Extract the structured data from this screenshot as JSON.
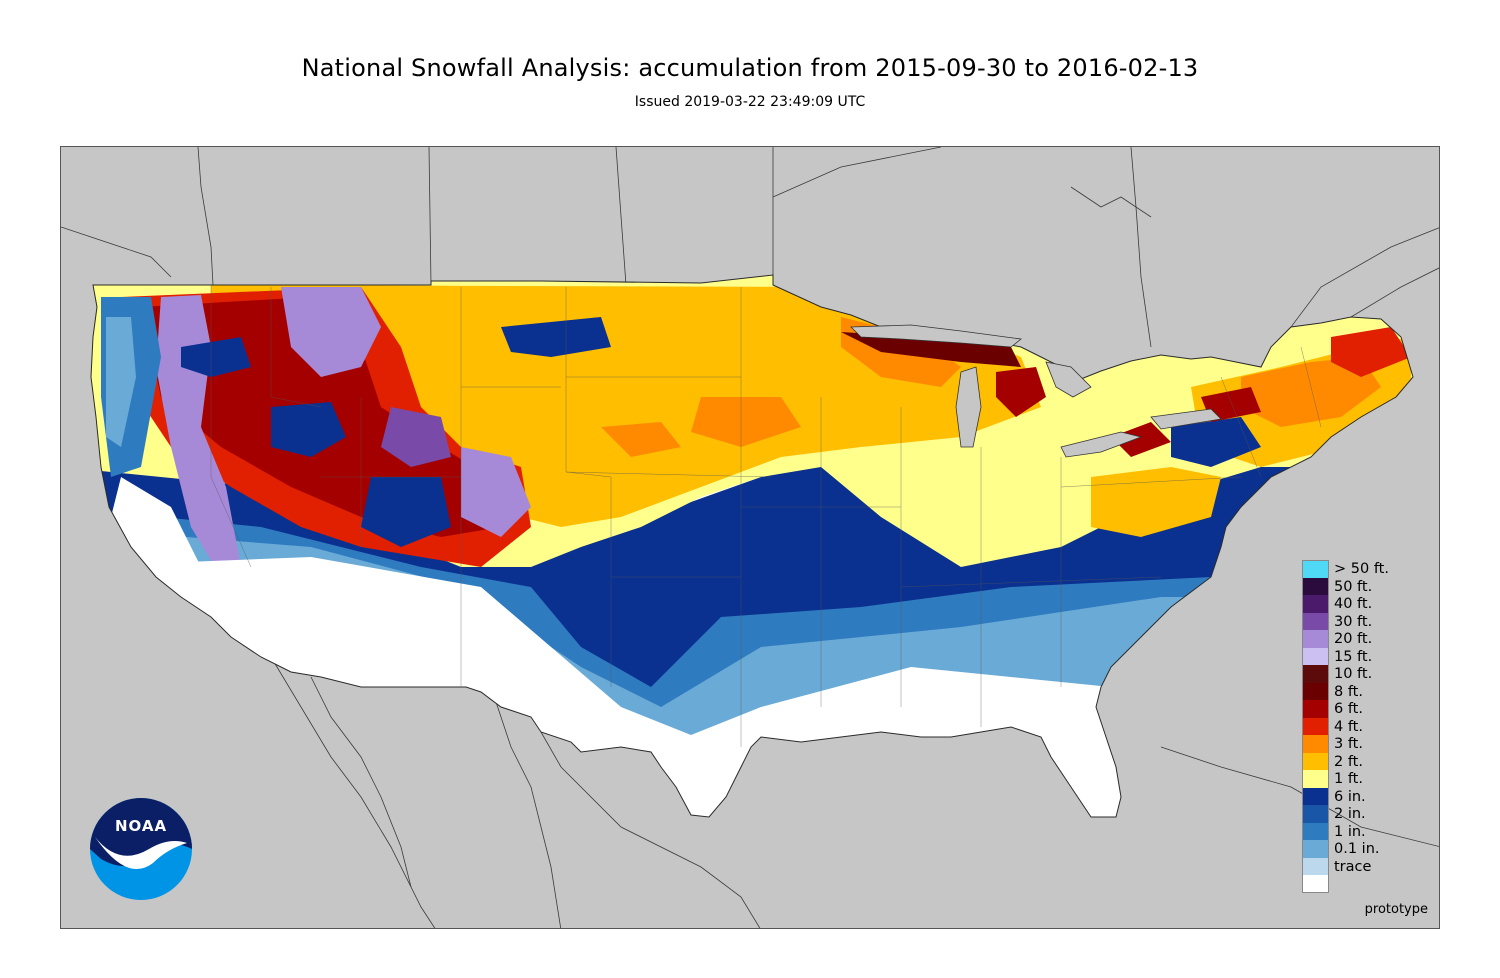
{
  "title": "National Snowfall Analysis: accumulation from 2015-09-30 to 2016-02-13",
  "issued": "Issued 2019-03-22 23:49:09 UTC",
  "watermark": "prototype",
  "logo": {
    "text": "NOAA",
    "icon": "noaa-logo"
  },
  "colors": {
    "map_background": "#c6c6c6",
    "land_water_border": "#444444"
  },
  "legend": [
    {
      "label": "> 50 ft.",
      "color": "#4fd9f7"
    },
    {
      "label": "50 ft.",
      "color": "#2b0a3d"
    },
    {
      "label": "40 ft.",
      "color": "#4b1a6b"
    },
    {
      "label": "30 ft.",
      "color": "#7a4aa8"
    },
    {
      "label": "20 ft.",
      "color": "#a68ad8"
    },
    {
      "label": "15 ft.",
      "color": "#ccc0f2"
    },
    {
      "label": "10 ft.",
      "color": "#5c0a0a"
    },
    {
      "label": "8 ft.",
      "color": "#6b0000"
    },
    {
      "label": "6 ft.",
      "color": "#a50000"
    },
    {
      "label": "4 ft.",
      "color": "#e02000"
    },
    {
      "label": "3 ft.",
      "color": "#ff8a00"
    },
    {
      "label": "2 ft.",
      "color": "#ffbe00"
    },
    {
      "label": "1 ft.",
      "color": "#ffff8c"
    },
    {
      "label": "6 in.",
      "color": "#0a3090"
    },
    {
      "label": "2 in.",
      "color": "#1a56a8"
    },
    {
      "label": "1 in.",
      "color": "#2f7bc0"
    },
    {
      "label": "0.1 in.",
      "color": "#6aaad6"
    },
    {
      "label": "trace",
      "color": "#bcd8ec"
    },
    {
      "label": "",
      "color": "#ffffff"
    }
  ]
}
